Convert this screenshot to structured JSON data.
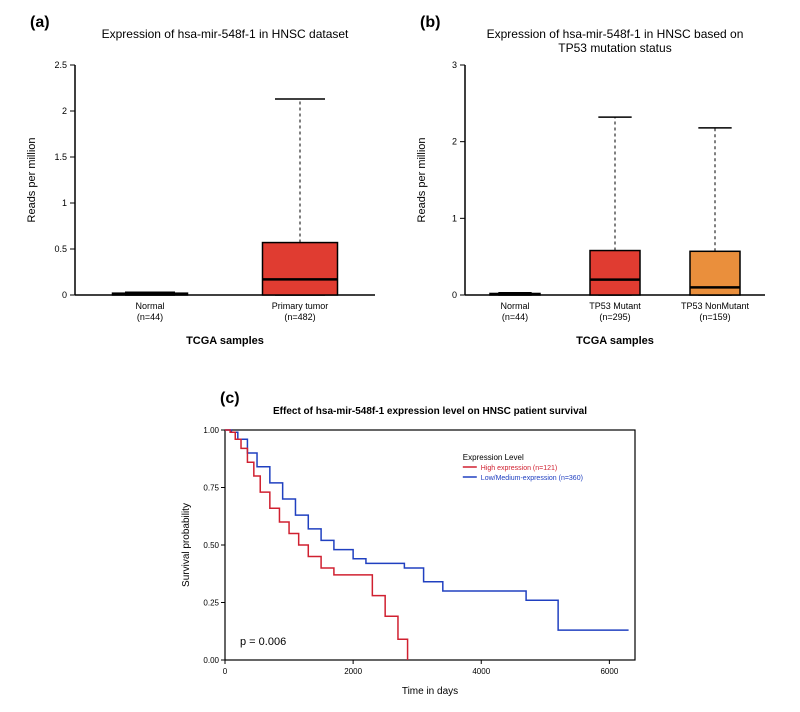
{
  "panelA": {
    "label": "(a)",
    "title": "Expression of hsa-mir-548f-1 in HNSC dataset",
    "ylabel": "Reads per million",
    "xlabel": "TCGA samples",
    "categories": [
      "Normal\n(n=44)",
      "Primary tumor\n(n=482)"
    ],
    "boxes": [
      {
        "q1": 0.0,
        "median": 0.01,
        "q3": 0.02,
        "whisker_lo": 0.0,
        "whisker_hi": 0.03,
        "fill": "none"
      },
      {
        "q1": 0.0,
        "median": 0.17,
        "q3": 0.57,
        "whisker_lo": 0.0,
        "whisker_hi": 2.13,
        "fill": "#e03c31"
      }
    ],
    "ylim": [
      0,
      2.5
    ],
    "yticks": [
      0,
      0.5,
      1,
      1.5,
      2,
      2.5
    ],
    "label_fontsize": 11,
    "tick_fontsize": 9,
    "title_fontsize": 12,
    "axis_color": "#000",
    "bg": "#fff"
  },
  "panelB": {
    "label": "(b)",
    "title": "Expression of hsa-mir-548f-1 in HNSC based on TP53 mutation status",
    "ylabel": "Reads per million",
    "xlabel": "TCGA samples",
    "categories": [
      "Normal\n(n=44)",
      "TP53 Mutant\n(n=295)",
      "TP53 NonMutant\n(n=159)"
    ],
    "boxes": [
      {
        "q1": 0.0,
        "median": 0.01,
        "q3": 0.02,
        "whisker_lo": 0.0,
        "whisker_hi": 0.03,
        "fill": "none"
      },
      {
        "q1": 0.0,
        "median": 0.2,
        "q3": 0.58,
        "whisker_lo": 0.0,
        "whisker_hi": 2.32,
        "fill": "#e03c31"
      },
      {
        "q1": 0.0,
        "median": 0.1,
        "q3": 0.57,
        "whisker_lo": 0.0,
        "whisker_hi": 2.18,
        "fill": "#ea8f3c"
      }
    ],
    "ylim": [
      0,
      3
    ],
    "yticks": [
      0,
      1,
      2,
      3
    ],
    "label_fontsize": 11,
    "tick_fontsize": 9,
    "title_fontsize": 12,
    "axis_color": "#000",
    "bg": "#fff"
  },
  "panelC": {
    "label": "(c)",
    "title": "Effect of hsa-mir-548f-1 expression level on HNSC patient survival",
    "ylabel": "Survival probability",
    "xlabel": "Time in days",
    "xlim": [
      0,
      6400
    ],
    "xticks": [
      0,
      2000,
      4000,
      6000
    ],
    "ylim": [
      0,
      1.0
    ],
    "yticks": [
      0.0,
      0.25,
      0.5,
      0.75,
      1.0
    ],
    "pvalue": "p = 0.006",
    "legend_title": "Expression Level",
    "legend": [
      {
        "label": "High expression (n=121)",
        "color": "#d02030"
      },
      {
        "label": "Low/Medium-expression (n=360)",
        "color": "#2040c0"
      }
    ],
    "curves": {
      "high": {
        "color": "#d02030",
        "points": [
          [
            0,
            1.0
          ],
          [
            80,
            0.99
          ],
          [
            160,
            0.96
          ],
          [
            250,
            0.92
          ],
          [
            350,
            0.86
          ],
          [
            450,
            0.8
          ],
          [
            550,
            0.73
          ],
          [
            700,
            0.66
          ],
          [
            850,
            0.6
          ],
          [
            1000,
            0.55
          ],
          [
            1150,
            0.5
          ],
          [
            1300,
            0.45
          ],
          [
            1500,
            0.4
          ],
          [
            1700,
            0.37
          ],
          [
            2000,
            0.37
          ],
          [
            2300,
            0.28
          ],
          [
            2500,
            0.19
          ],
          [
            2700,
            0.09
          ],
          [
            2850,
            0.0
          ]
        ]
      },
      "low": {
        "color": "#2040c0",
        "points": [
          [
            0,
            1.0
          ],
          [
            100,
            0.99
          ],
          [
            200,
            0.96
          ],
          [
            350,
            0.9
          ],
          [
            500,
            0.84
          ],
          [
            700,
            0.77
          ],
          [
            900,
            0.7
          ],
          [
            1100,
            0.63
          ],
          [
            1300,
            0.57
          ],
          [
            1500,
            0.52
          ],
          [
            1700,
            0.48
          ],
          [
            2000,
            0.44
          ],
          [
            2200,
            0.42
          ],
          [
            2500,
            0.42
          ],
          [
            2800,
            0.4
          ],
          [
            3100,
            0.34
          ],
          [
            3400,
            0.3
          ],
          [
            3800,
            0.3
          ],
          [
            4300,
            0.3
          ],
          [
            4700,
            0.26
          ],
          [
            5200,
            0.13
          ],
          [
            5700,
            0.13
          ],
          [
            6300,
            0.13
          ]
        ]
      }
    },
    "label_fontsize": 10,
    "tick_fontsize": 8,
    "title_fontsize": 10,
    "axis_color": "#000",
    "bg": "#fff"
  }
}
